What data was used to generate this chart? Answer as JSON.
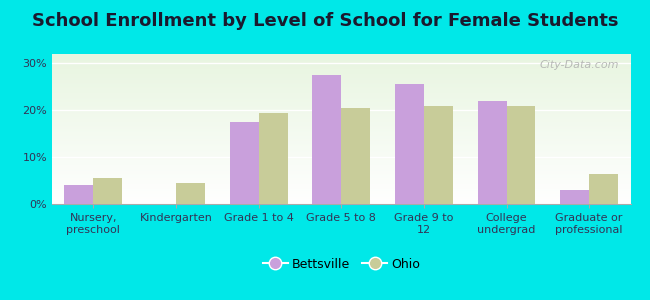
{
  "title": "School Enrollment by Level of School for Female Students",
  "categories": [
    "Nursery,\npreschool",
    "Kindergarten",
    "Grade 1 to 4",
    "Grade 5 to 8",
    "Grade 9 to\n12",
    "College\nundergrad",
    "Graduate or\nprofessional"
  ],
  "bettsville": [
    4.0,
    0.0,
    17.5,
    27.5,
    25.5,
    22.0,
    3.0
  ],
  "ohio": [
    5.5,
    4.5,
    19.5,
    20.5,
    21.0,
    21.0,
    6.5
  ],
  "bettsville_color": "#c9a0dc",
  "ohio_color": "#c8cc99",
  "bar_width": 0.35,
  "ylim": [
    0,
    32
  ],
  "yticks": [
    0,
    10,
    20,
    30
  ],
  "ytick_labels": [
    "0%",
    "10%",
    "20%",
    "30%"
  ],
  "background_color": "#00e8e8",
  "plot_bg_top": "#e8f5e0",
  "plot_bg_bottom": "#f8fff8",
  "title_fontsize": 13,
  "tick_fontsize": 8,
  "legend_labels": [
    "Bettsville",
    "Ohio"
  ],
  "watermark": "City-Data.com"
}
